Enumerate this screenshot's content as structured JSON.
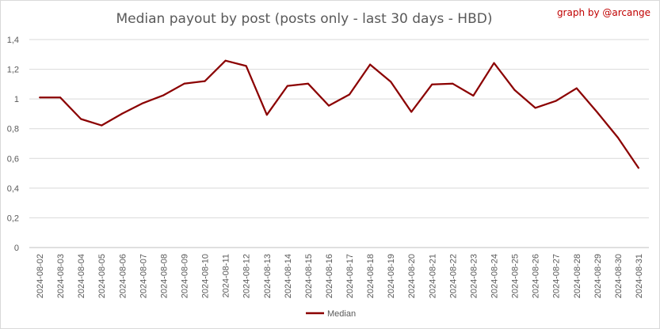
{
  "chart_data": {
    "type": "line",
    "title": "Median payout by post (posts only - last 30 days - HBD)",
    "credit": "graph by @arcange",
    "xlabel": "",
    "ylabel": "",
    "ylim": [
      0,
      1.4
    ],
    "y_ticks": [
      {
        "value": 0,
        "label": "0"
      },
      {
        "value": 0.2,
        "label": "0,2"
      },
      {
        "value": 0.4,
        "label": "0,4"
      },
      {
        "value": 0.6,
        "label": "0,6"
      },
      {
        "value": 0.8,
        "label": "0,8"
      },
      {
        "value": 1,
        "label": "1"
      },
      {
        "value": 1.2,
        "label": "1,2"
      },
      {
        "value": 1.4,
        "label": "1,4"
      }
    ],
    "grid": "horizontal",
    "legend_position": "bottom",
    "x": [
      "2024-08-02",
      "2024-08-03",
      "2024-08-04",
      "2024-08-05",
      "2024-08-06",
      "2024-08-07",
      "2024-08-08",
      "2024-08-09",
      "2024-08-10",
      "2024-08-11",
      "2024-08-12",
      "2024-08-13",
      "2024-08-14",
      "2024-08-15",
      "2024-08-16",
      "2024-08-17",
      "2024-08-18",
      "2024-08-19",
      "2024-08-20",
      "2024-08-21",
      "2024-08-22",
      "2024-08-23",
      "2024-08-24",
      "2024-08-25",
      "2024-08-26",
      "2024-08-27",
      "2024-08-28",
      "2024-08-29",
      "2024-08-30",
      "2024-08-31"
    ],
    "series": [
      {
        "name": "Median",
        "color": "#8b0000",
        "values": [
          1.01,
          1.01,
          0.865,
          0.822,
          0.902,
          0.972,
          1.025,
          1.103,
          1.12,
          1.258,
          1.222,
          0.893,
          1.088,
          1.103,
          0.955,
          1.03,
          1.232,
          1.116,
          0.913,
          1.098,
          1.103,
          1.022,
          1.242,
          1.06,
          0.94,
          0.987,
          1.072,
          0.91,
          0.74,
          0.535
        ]
      }
    ],
    "colors": {
      "line": "#8b0000",
      "credit": "#c00000",
      "grid": "#d9d9d9",
      "text": "#595959"
    }
  }
}
